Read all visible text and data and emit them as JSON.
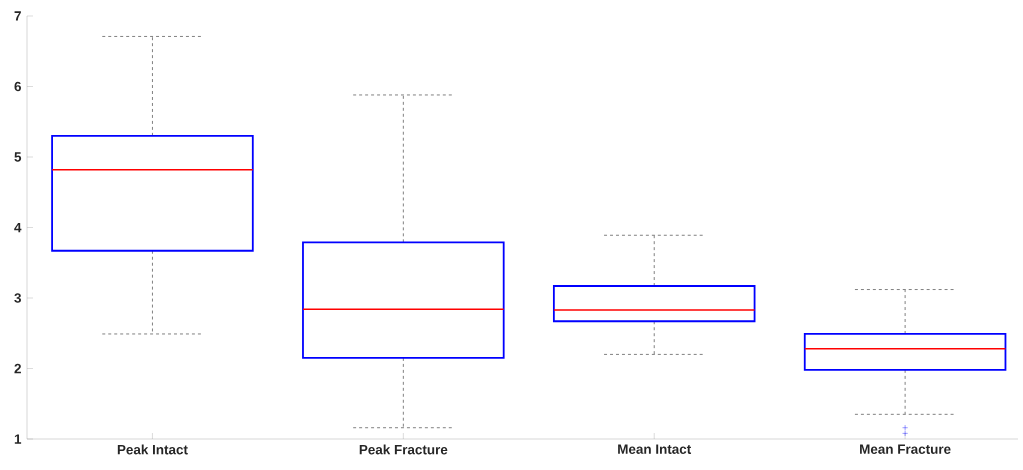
{
  "chart_data": {
    "type": "box",
    "categories": [
      "Peak Intact",
      "Peak Fracture",
      "Mean Intact",
      "Mean Fracture"
    ],
    "boxes": [
      {
        "low": 2.49,
        "q1": 3.67,
        "median": 4.82,
        "q3": 5.3,
        "high": 6.71
      },
      {
        "low": 1.16,
        "q1": 2.15,
        "median": 2.84,
        "q3": 3.79,
        "high": 5.88
      },
      {
        "low": 2.2,
        "q1": 2.67,
        "median": 2.83,
        "q3": 3.17,
        "high": 3.89
      },
      {
        "low": 1.35,
        "q1": 1.98,
        "median": 2.28,
        "q3": 2.49,
        "high": 3.12,
        "outliers": [
          1.16,
          1.08
        ]
      }
    ],
    "color": "#0000ff",
    "marker": "cross",
    "ylim": [
      1,
      7
    ],
    "yticks": [
      1,
      2,
      3,
      4,
      5,
      6,
      7
    ]
  }
}
